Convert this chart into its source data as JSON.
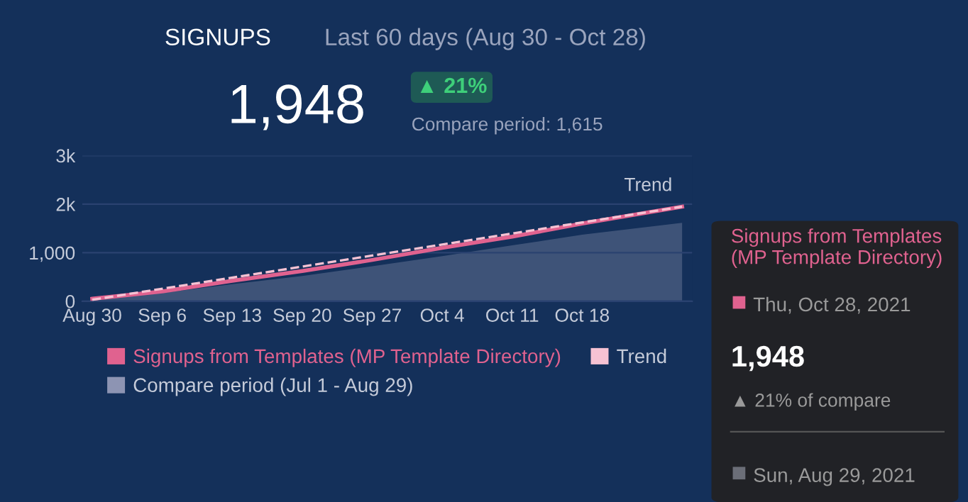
{
  "chart_data": {
    "type": "line",
    "title": "SIGNUPS",
    "subtitle": "Last 60 days (Aug 30 - Oct 28)",
    "annotations": [
      "1,948",
      "▲ 21%",
      "Compare period: 1,615",
      "Trend",
      "Signups from Templates (MP Template Directory)",
      "Thu, Oct 28, 2021",
      "1,948",
      "▲ 21% of compare",
      "Sun, Aug 29, 2021"
    ],
    "x": [
      "2021-08-30",
      "2021-09-06",
      "2021-09-13",
      "2021-09-20",
      "2021-09-27",
      "2021-10-04",
      "2021-10-11",
      "2021-10-18",
      "2021-10-28"
    ],
    "series": [
      {
        "name": "Signups from Templates (MP Template Directory)",
        "color": "#e0628f",
        "values": [
          50,
          200,
          420,
          620,
          850,
          1100,
          1330,
          1600,
          1948
        ]
      },
      {
        "name": "Compare period (Jul 1 - Aug 29)",
        "type": "area",
        "color": "#8d94b3",
        "values": [
          40,
          170,
          350,
          520,
          720,
          930,
          1150,
          1370,
          1615
        ]
      },
      {
        "name": "Trend",
        "type": "line",
        "line_style": "dashed",
        "color": "#f6c2d3",
        "x": [
          "2021-08-30",
          "2021-10-28"
        ],
        "values": [
          30,
          1948
        ]
      }
    ],
    "ylim": [
      0,
      3000
    ],
    "yticks": [
      0,
      {
        "value": 1000,
        "label": "1,000"
      },
      {
        "value": 2000,
        "label": "2k"
      },
      {
        "value": 3000,
        "label": "3k"
      }
    ],
    "xlim": [
      "2021-08-29",
      "2021-10-29"
    ],
    "xticks": [
      {
        "value": "2021-08-30",
        "label": "Aug 30"
      },
      {
        "value": "2021-09-06",
        "label": "Sep 6"
      },
      {
        "value": "2021-09-13",
        "label": "Sep 13"
      },
      {
        "value": "2021-09-20",
        "label": "Sep 20"
      },
      {
        "value": "2021-09-27",
        "label": "Sep 27"
      },
      {
        "value": "2021-10-04",
        "label": "Oct 4"
      },
      {
        "value": "2021-10-11",
        "label": "Oct 11"
      },
      {
        "value": "2021-10-18",
        "label": "Oct 18"
      }
    ],
    "grid": "y",
    "legend": "bottom",
    "line_style": "solid",
    "marker": "none"
  }
}
